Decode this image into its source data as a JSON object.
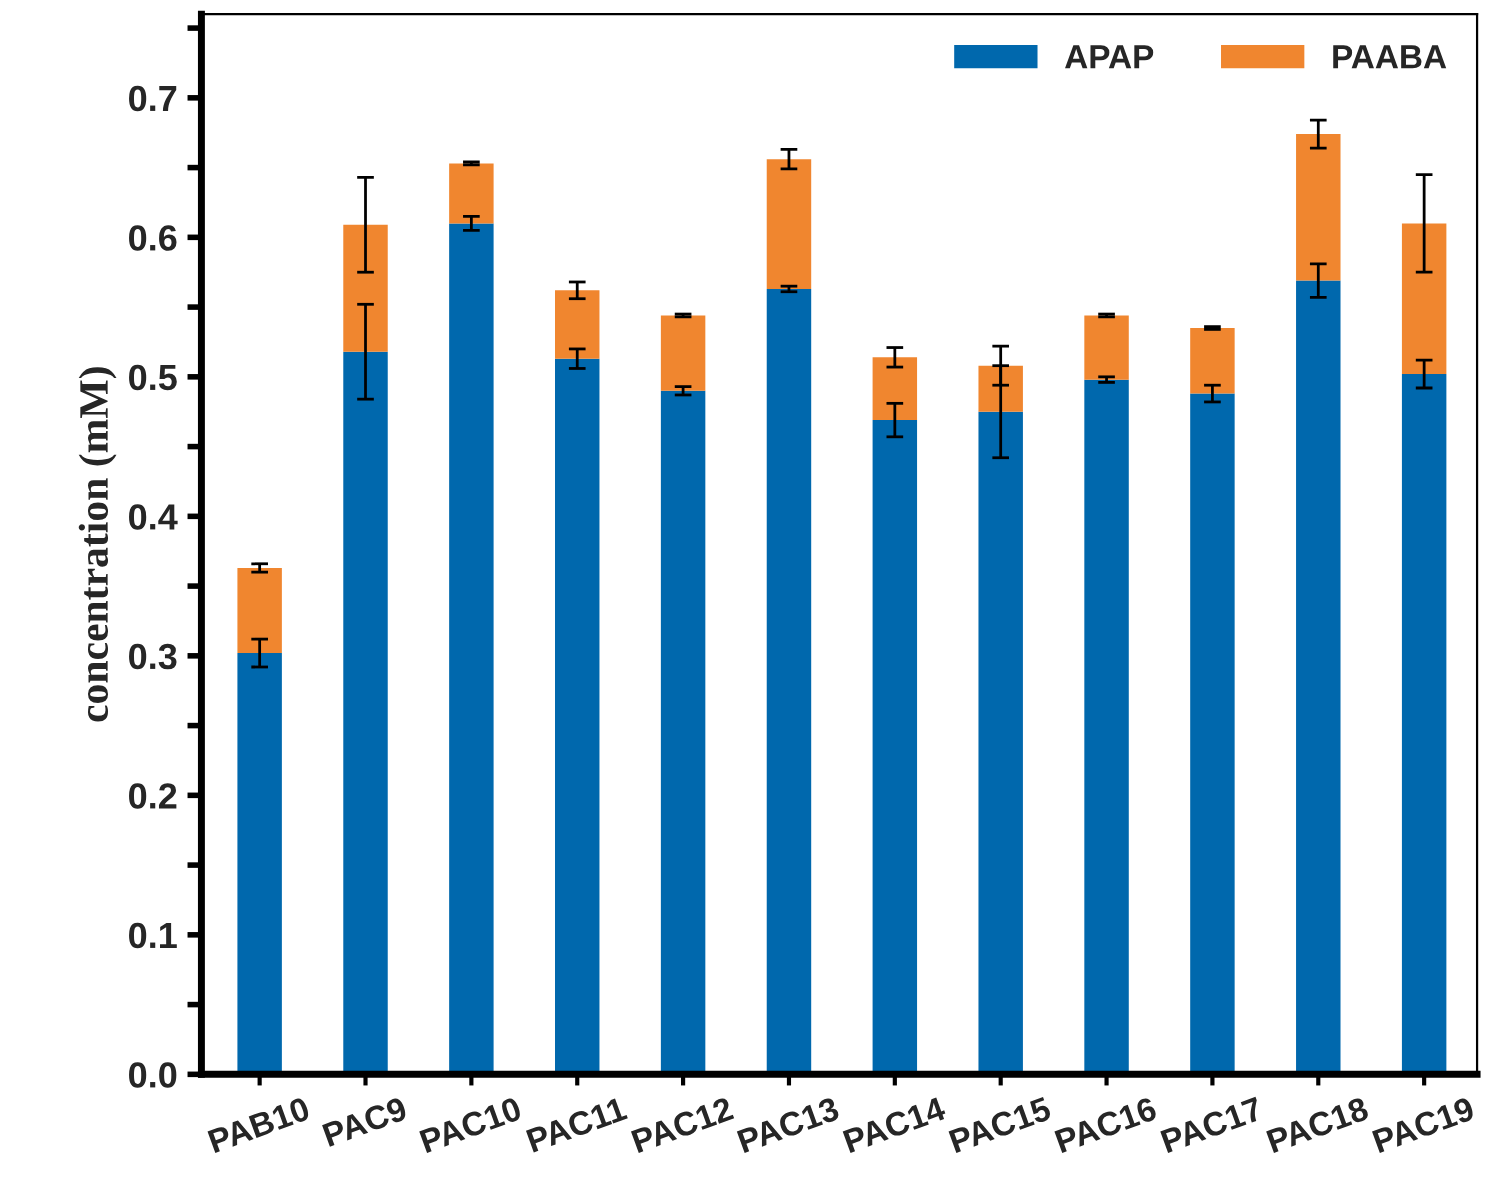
{
  "chart_data": {
    "type": "bar",
    "stacked": true,
    "ylabel": "concentration (mM)",
    "categories": [
      "PAB10",
      "PAC9",
      "PAC10",
      "PAC11",
      "PAC12",
      "PAC13",
      "PAC14",
      "PAC15",
      "PAC16",
      "PAC17",
      "PAC18",
      "PAC19"
    ],
    "series": [
      {
        "name": "APAP",
        "color": "#0068ad",
        "values": [
          0.302,
          0.518,
          0.61,
          0.513,
          0.49,
          0.563,
          0.469,
          0.475,
          0.498,
          0.488,
          0.569,
          0.502
        ],
        "errors": [
          0.01,
          0.034,
          0.005,
          0.007,
          0.003,
          0.002,
          0.012,
          0.033,
          0.002,
          0.006,
          0.012,
          0.01
        ]
      },
      {
        "name": "PAABA",
        "color": "#f0862f",
        "values": [
          0.061,
          0.091,
          0.043,
          0.049,
          0.054,
          0.093,
          0.045,
          0.033,
          0.046,
          0.047,
          0.105,
          0.108
        ],
        "errors": [
          0.003,
          0.034,
          0.001,
          0.006,
          0.001,
          0.007,
          0.007,
          0.014,
          0.001,
          0.001,
          0.01,
          0.035
        ]
      }
    ],
    "ylim": [
      0,
      0.76
    ],
    "yticks": [
      {
        "value": 0,
        "label": "0.0"
      },
      {
        "value": 0.05,
        "label": null
      },
      0.1,
      {
        "value": 0.15,
        "label": null
      },
      0.2,
      {
        "value": 0.25,
        "label": null
      },
      0.3,
      {
        "value": 0.35,
        "label": null
      },
      0.4,
      {
        "value": 0.45,
        "label": null
      },
      0.5,
      {
        "value": 0.55,
        "label": null
      },
      0.6,
      {
        "value": 0.65,
        "label": null
      },
      0.7,
      {
        "value": 0.75,
        "label": null
      }
    ],
    "grid": false,
    "legend": "top right"
  }
}
